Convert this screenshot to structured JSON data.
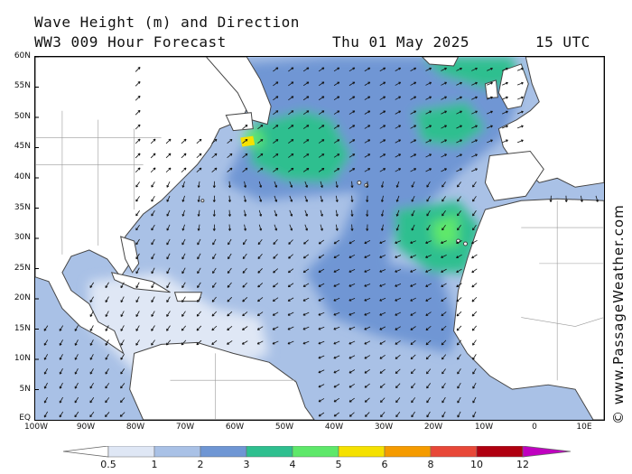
{
  "header": {
    "title": "Wave Height (m) and Direction",
    "model": "WW3 009 Hour Forecast",
    "date": "Thu 01 May 2025",
    "time": "15 UTC"
  },
  "map": {
    "lat_labels": [
      "60N",
      "55N",
      "50N",
      "45N",
      "40N",
      "35N",
      "30N",
      "25N",
      "20N",
      "15N",
      "10N",
      "5N",
      "EQ"
    ],
    "lon_labels": [
      "100W",
      "90W",
      "80W",
      "70W",
      "60W",
      "50W",
      "40W",
      "30W",
      "20W",
      "10W",
      "0",
      "10E"
    ],
    "land_color": "#ffffff",
    "ocean_base_color": "#a9c1e6",
    "arrow_color": "#111111"
  },
  "credit": "© www.PassageWeather.com",
  "legend": {
    "ticks": [
      "0.5",
      "1",
      "2",
      "3",
      "4",
      "5",
      "6",
      "8",
      "10",
      "12"
    ],
    "colors": [
      "#ffffff",
      "#dfe7f5",
      "#a9c1e6",
      "#6f96d4",
      "#2fbf8f",
      "#5ee86a",
      "#f5e100",
      "#f59b00",
      "#e84838",
      "#b00010",
      "#c000c0"
    ]
  }
}
